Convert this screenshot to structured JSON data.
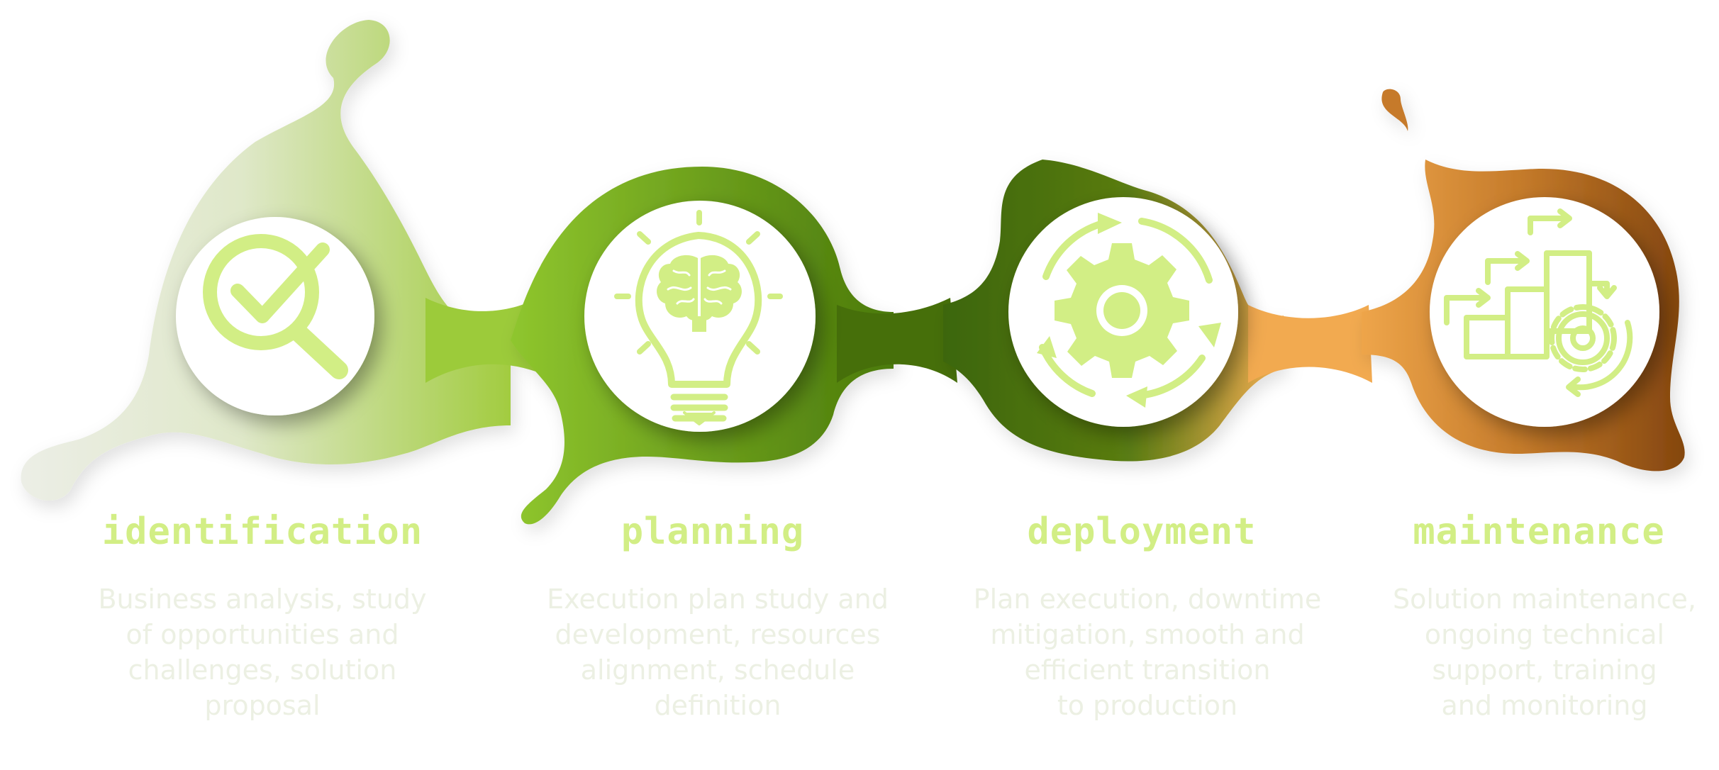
{
  "colors": {
    "icon": "#d2ee85",
    "title": "#d2ee85",
    "description": "#ecf0e3",
    "stage1_from": "#e9ebe2",
    "stage1_to": "#a7cf48",
    "stage2_from": "#89c22a",
    "stage2_to": "#4f7f0c",
    "stage3_from": "#3f6b08",
    "stage3_to": "#f2aa50",
    "stage4_from": "#d98a36",
    "stage4_to": "#8a4a10"
  },
  "stages": [
    {
      "title": "identification",
      "icon": "magnifier-check-icon",
      "description": [
        "Business analysis, study",
        "of opportunities and",
        "challenges, solution",
        "proposal"
      ]
    },
    {
      "title": "planning",
      "icon": "lightbulb-brain-icon",
      "description": [
        "Execution plan study and",
        "development, resources",
        "alignment, schedule",
        "definition"
      ]
    },
    {
      "title": "deployment",
      "icon": "gear-cycle-icon",
      "description": [
        "Plan execution, downtime",
        "mitigation, smooth and",
        "efficient transition",
        "to production"
      ]
    },
    {
      "title": "maintenance",
      "icon": "steps-gear-icon",
      "description": [
        "Solution maintenance,",
        "ongoing technical",
        "support, training",
        "and monitoring"
      ]
    }
  ]
}
